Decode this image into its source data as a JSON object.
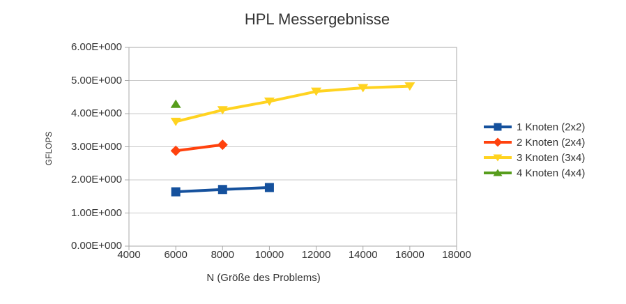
{
  "chart_data": {
    "type": "line",
    "title": "HPL Messergebnisse",
    "xlabel": "N (Größe des Problems)",
    "ylabel": "GFLOPS",
    "xlim": [
      4000,
      18000
    ],
    "ylim": [
      0,
      6
    ],
    "xticks": [
      4000,
      6000,
      8000,
      10000,
      12000,
      14000,
      16000,
      18000
    ],
    "ytick_labels": [
      "0.00E+000",
      "1.00E+000",
      "2.00E+000",
      "3.00E+000",
      "4.00E+000",
      "5.00E+000",
      "6.00E+000"
    ],
    "grid": true,
    "legend_position": "right",
    "colors": {
      "grid": "#c9c9c9",
      "axis": "#a8a8a8",
      "text": "#333333",
      "background": "#ffffff"
    },
    "series": [
      {
        "name": "1 Knoten (2x2)",
        "color": "#15519D",
        "marker": "square",
        "x": [
          6000,
          8000,
          10000
        ],
        "y": [
          1.64,
          1.71,
          1.77
        ]
      },
      {
        "name": "2 Knoten (2x4)",
        "color": "#FF420E",
        "marker": "diamond",
        "x": [
          6000,
          8000
        ],
        "y": [
          2.88,
          3.06
        ]
      },
      {
        "name": "3 Knoten (3x4)",
        "color": "#FFD320",
        "marker": "triangle-down",
        "x": [
          6000,
          8000,
          10000,
          12000,
          14000,
          16000
        ],
        "y": [
          3.76,
          4.11,
          4.37,
          4.67,
          4.78,
          4.83
        ]
      },
      {
        "name": "4 Knoten (4x4)",
        "color": "#579D1C",
        "marker": "triangle-up",
        "x": [
          6000
        ],
        "y": [
          4.29
        ]
      }
    ]
  }
}
